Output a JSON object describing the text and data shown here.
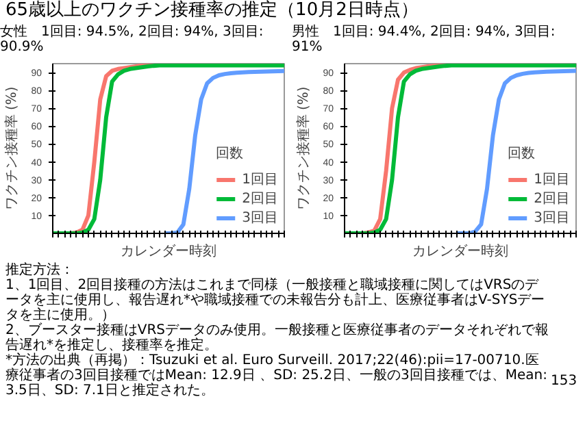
{
  "chart_data": [
    {
      "type": "line",
      "title": "65歳以上のワクチン接種率の推定（10月2日時点）",
      "subtitle": "女性　1回目: 94.5%, 2回目: 94%, 3回目: 90.9%",
      "xlabel": "カレンダー時刻",
      "ylabel": "ワクチン接種率 (%)",
      "legend_title": "回数",
      "legend": "bottom right",
      "categories": [
        null,
        null,
        null,
        null,
        null,
        null,
        null,
        null,
        null,
        null,
        null,
        null,
        null,
        null,
        null,
        null,
        null,
        null,
        null,
        null,
        null,
        null,
        null,
        null,
        null,
        null,
        null,
        null,
        null,
        null,
        null,
        null,
        null,
        null,
        null,
        null,
        null,
        null,
        null,
        null
      ],
      "ylim": [
        0,
        95
      ],
      "yticks": [
        10,
        20,
        30,
        40,
        50,
        60,
        70,
        80,
        90
      ],
      "series": [
        {
          "name": "1回目",
          "color": "#f8766d",
          "values": [
            null,
            null,
            0,
            0,
            0.5,
            2,
            10,
            40,
            75,
            88,
            91,
            92,
            92.5,
            93,
            93.5,
            94,
            94.2,
            94.4,
            null,
            null,
            null,
            null,
            null,
            null,
            null,
            null,
            null,
            null,
            null,
            null,
            null,
            null,
            null,
            null,
            null,
            null,
            null,
            null,
            null,
            null
          ]
        },
        {
          "name": "2回目",
          "color": "#00ba38",
          "values": [
            0,
            0,
            0,
            0,
            0,
            0.5,
            2,
            8,
            30,
            65,
            85,
            89,
            91,
            92,
            92.5,
            93,
            93.5,
            93.8,
            94,
            94,
            94,
            94,
            94,
            94,
            94,
            94,
            94,
            94,
            94,
            94,
            94,
            94,
            94,
            94,
            94,
            94,
            94,
            94,
            94,
            94
          ]
        },
        {
          "name": "3回目",
          "color": "#619cff",
          "values": [
            null,
            null,
            null,
            null,
            null,
            null,
            null,
            null,
            null,
            null,
            null,
            null,
            null,
            null,
            null,
            null,
            null,
            null,
            null,
            0,
            0,
            0.5,
            5,
            25,
            55,
            75,
            84,
            87,
            88.5,
            89.2,
            89.6,
            89.9,
            90.1,
            90.3,
            90.4,
            90.5,
            90.6,
            90.7,
            90.8,
            90.9
          ]
        }
      ],
      "annotations": [
        "推定方法：",
        "1、1回目、2回目接種の方法はこれまで同様（一般接種と職域接種に関してはVRSのデータを主に使用し、報告遅れ*や職域接種での未報告分も計上、医療従事者はV-SYSデータを主に使用。）",
        "2、ブースター接種はVRSデータのみ使用。一般接種と医療従事者のデータそれぞれで報告遅れ*を推定し、接種率を推定。",
        "*方法の出典（再掲）：Tsuzuki et al. Euro Surveill. 2017;22(46):pii=17-00710.医療従事者の3回目接種ではMean: 12.9日 、SD: 25.2日、一般の3回目接種では、Mean: 3.5日、SD: 7.1日と推定された。",
        "153"
      ]
    },
    {
      "type": "line",
      "subtitle": "男性　1回目: 94.4%, 2回目: 94%, 3回目: 91%",
      "xlabel": "カレンダー時刻",
      "ylabel": "ワクチン接種率 (%)",
      "legend_title": "回数",
      "legend": "bottom right",
      "categories": [
        null,
        null,
        null,
        null,
        null,
        null,
        null,
        null,
        null,
        null,
        null,
        null,
        null,
        null,
        null,
        null,
        null,
        null,
        null,
        null,
        null,
        null,
        null,
        null,
        null,
        null,
        null,
        null,
        null,
        null,
        null,
        null,
        null,
        null,
        null,
        null,
        null,
        null,
        null,
        null
      ],
      "ylim": [
        0,
        95
      ],
      "yticks": [
        10,
        20,
        30,
        40,
        50,
        60,
        70,
        80,
        90
      ],
      "series": [
        {
          "name": "1回目",
          "color": "#f8766d",
          "values": [
            null,
            null,
            0,
            0,
            0.5,
            1.5,
            8,
            35,
            70,
            86,
            90,
            91.5,
            92.5,
            93,
            93.5,
            93.8,
            94,
            94.2,
            null,
            null,
            null,
            null,
            null,
            null,
            null,
            null,
            null,
            null,
            null,
            null,
            null,
            null,
            null,
            null,
            null,
            null,
            null,
            null,
            null,
            null
          ]
        },
        {
          "name": "2回目",
          "color": "#00ba38",
          "values": [
            0,
            0,
            0,
            0,
            0,
            0.5,
            2,
            8,
            30,
            65,
            85,
            89,
            91,
            92,
            92.5,
            93,
            93.5,
            93.8,
            94,
            94,
            94,
            94,
            94,
            94,
            94,
            94,
            94,
            94,
            94,
            94,
            94,
            94,
            94,
            94,
            94,
            94,
            94,
            94,
            94,
            94
          ]
        },
        {
          "name": "3回目",
          "color": "#619cff",
          "values": [
            null,
            null,
            null,
            null,
            null,
            null,
            null,
            null,
            null,
            null,
            null,
            null,
            null,
            null,
            null,
            null,
            null,
            null,
            null,
            0,
            0,
            0,
            1,
            5,
            25,
            55,
            75,
            84,
            87,
            88.5,
            89.3,
            89.8,
            90.1,
            90.3,
            90.5,
            90.6,
            90.7,
            90.8,
            90.9,
            91
          ]
        }
      ]
    }
  ]
}
